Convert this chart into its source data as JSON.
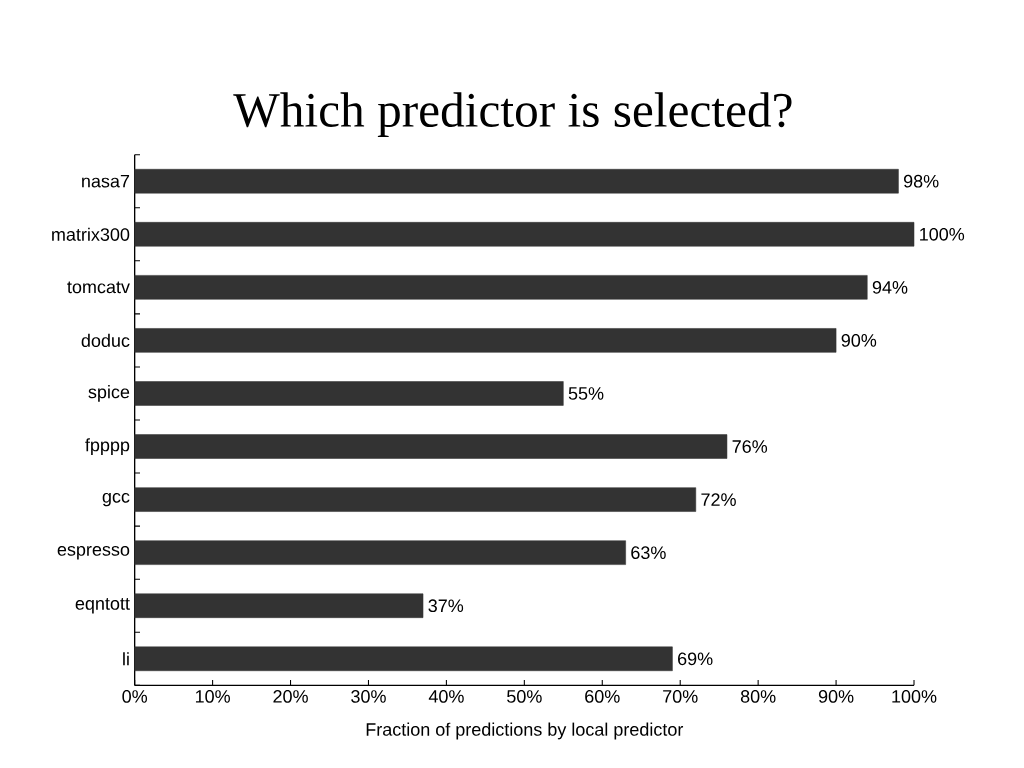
{
  "chart_data": {
    "type": "bar",
    "orientation": "horizontal",
    "title": "Which predictor is selected?",
    "xlabel": "Fraction of predictions by local predictor",
    "categories": [
      "nasa7",
      "matrix300",
      "tomcatv",
      "doduc",
      "spice",
      "fpppp",
      "gcc",
      "espresso",
      "eqntott",
      "li"
    ],
    "values": [
      98,
      100,
      94,
      90,
      55,
      76,
      72,
      63,
      37,
      69
    ],
    "value_labels": [
      "98%",
      "100%",
      "94%",
      "90%",
      "55%",
      "76%",
      "72%",
      "63%",
      "37%",
      "69%"
    ],
    "color": "#333333",
    "xlim": [
      0,
      100
    ],
    "xticks": [
      {
        "value": 0,
        "label": "0%"
      },
      {
        "value": 10,
        "label": "10%"
      },
      {
        "value": 20,
        "label": "20%"
      },
      {
        "value": 30,
        "label": "30%"
      },
      {
        "value": 40,
        "label": "40%"
      },
      {
        "value": 50,
        "label": "50%"
      },
      {
        "value": 60,
        "label": "60%"
      },
      {
        "value": 70,
        "label": "70%"
      },
      {
        "value": 80,
        "label": "80%"
      },
      {
        "value": 90,
        "label": "90%"
      },
      {
        "value": 100,
        "label": "100%"
      }
    ],
    "grid": false
  }
}
